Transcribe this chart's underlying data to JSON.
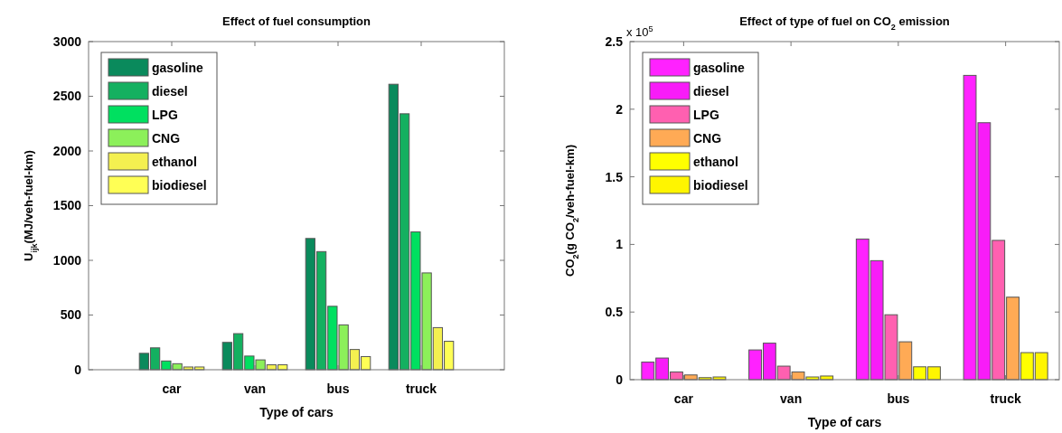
{
  "chart_data": [
    {
      "type": "bar",
      "title": "Effect of fuel consumption",
      "xlabel": "Type of cars",
      "ylabel": "U$_{ijk}$(MJ/veh-fuel-km)",
      "categories": [
        "car",
        "van",
        "bus",
        "truck"
      ],
      "ylim": [
        0,
        3000
      ],
      "yticks": [
        0,
        500,
        1000,
        1500,
        2000,
        2500,
        3000
      ],
      "grid": false,
      "legend": "top left",
      "series": [
        {
          "name": "gasoline",
          "color": "#0a8a5c",
          "values": [
            150,
            250,
            1200,
            2610
          ]
        },
        {
          "name": "diesel",
          "color": "#14b060",
          "values": [
            200,
            330,
            1080,
            2340
          ]
        },
        {
          "name": "LPG",
          "color": "#00e060",
          "values": [
            80,
            125,
            580,
            1260
          ]
        },
        {
          "name": "CNG",
          "color": "#8cf05a",
          "values": [
            55,
            90,
            410,
            885
          ]
        },
        {
          "name": "ethanol",
          "color": "#f4f050",
          "values": [
            25,
            45,
            185,
            385
          ]
        },
        {
          "name": "biodiesel",
          "color": "#ffff55",
          "values": [
            25,
            45,
            120,
            260
          ]
        }
      ]
    },
    {
      "type": "bar",
      "title": "Effect of type of fuel on CO$_{2}$ emission",
      "xlabel": "Type of cars",
      "ylabel": "CO$_{2}$(g CO$_{2}$/veh-fuel-km)",
      "annotations": [
        "x 10$^{5}$"
      ],
      "categories": [
        "car",
        "van",
        "bus",
        "truck"
      ],
      "ylim": [
        0,
        2.5
      ],
      "yticks": [
        0,
        {
          "value": 0.5,
          "label": "0.5"
        },
        1,
        1.5,
        2,
        2.5
      ],
      "grid": false,
      "legend": "top left",
      "series": [
        {
          "name": "gasoline",
          "color": "#ff22ff",
          "values": [
            0.13,
            0.22,
            1.04,
            2.25
          ]
        },
        {
          "name": "diesel",
          "color": "#f81cf8",
          "values": [
            0.16,
            0.27,
            0.88,
            1.9
          ]
        },
        {
          "name": "LPG",
          "color": "#ff60b0",
          "values": [
            0.057,
            0.1,
            0.48,
            1.03
          ]
        },
        {
          "name": "CNG",
          "color": "#ffaa55",
          "values": [
            0.035,
            0.057,
            0.28,
            0.61
          ]
        },
        {
          "name": "ethanol",
          "color": "#ffff00",
          "values": [
            0.015,
            0.02,
            0.095,
            0.2
          ]
        },
        {
          "name": "biodiesel",
          "color": "#fff500",
          "values": [
            0.02,
            0.027,
            0.095,
            0.2
          ]
        }
      ]
    }
  ]
}
